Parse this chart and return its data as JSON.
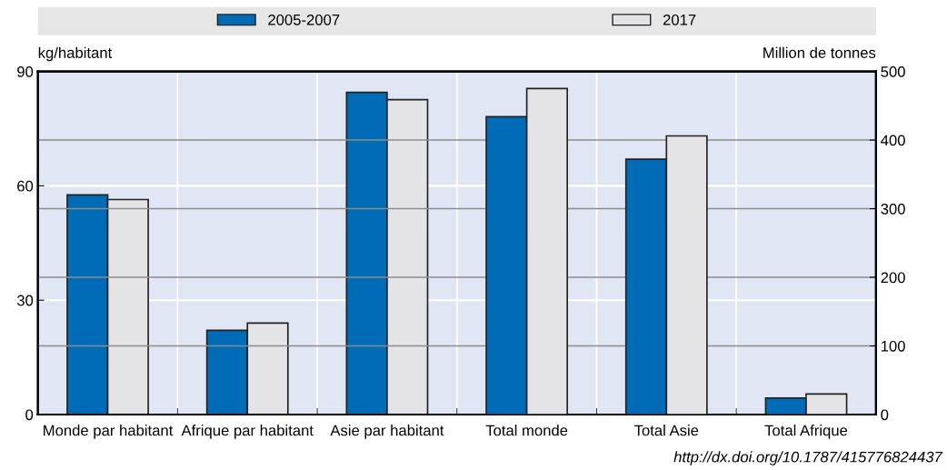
{
  "chart_data": {
    "type": "bar",
    "categories": [
      "Monde par habitant",
      "Afrique par habitant",
      "Asie par habitant",
      "Total monde",
      "Total Asie",
      "Total Afrique"
    ],
    "series": [
      {
        "name": "2005-2007",
        "color": "#006bb6",
        "values": [
          57.6,
          22.1,
          84.5,
          null,
          null,
          null
        ]
      },
      {
        "name": "2017",
        "color": "#e4e4e6",
        "values": [
          56.4,
          24.0,
          82.6,
          null,
          null,
          null
        ]
      },
      {
        "color": "#006bb6",
        "axis": "y2",
        "values": [
          null,
          null,
          null,
          434,
          372,
          24
        ]
      },
      {
        "color": "#e4e4e6",
        "axis": "y2",
        "values": [
          null,
          null,
          null,
          475,
          406,
          30
        ]
      }
    ],
    "ylabel": "kg/habitant",
    "y2label": "Million de tonnes",
    "ylim": [
      0,
      90
    ],
    "yticks": [
      0,
      30,
      60,
      90
    ],
    "y2lim": [
      0,
      500
    ],
    "y2ticks": [
      0,
      100,
      200,
      300,
      400,
      500
    ],
    "grid": "y",
    "legend": "top",
    "annotations": [
      "http://dx.doi.org/10.1787/415776824437"
    ]
  }
}
